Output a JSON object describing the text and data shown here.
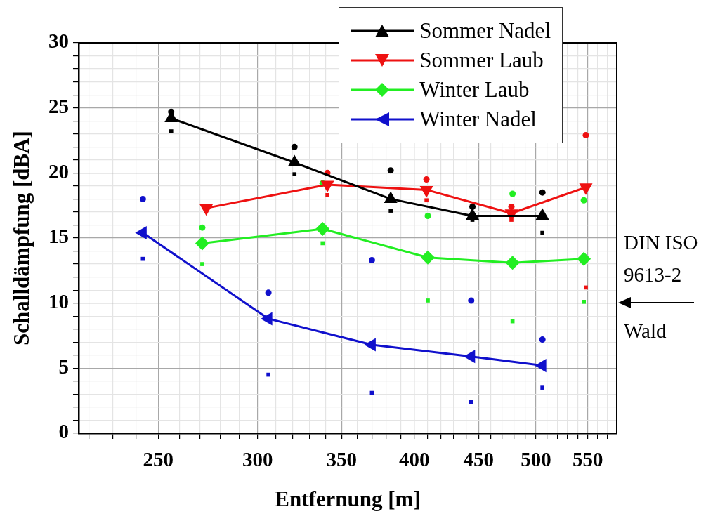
{
  "chart_data": {
    "type": "line",
    "xlabel": "Entfernung [m]",
    "ylabel": "Schalldämpfung [dBA]",
    "log": "x",
    "xlim": [
      216,
      580
    ],
    "ylim": [
      0,
      30
    ],
    "xticks": [
      {
        "value": 220,
        "label": null
      },
      {
        "value": 230,
        "label": null
      },
      {
        "value": 240,
        "label": null
      },
      250,
      {
        "value": 260,
        "label": null
      },
      {
        "value": 270,
        "label": null
      },
      {
        "value": 280,
        "label": null
      },
      {
        "value": 290,
        "label": null
      },
      300,
      {
        "value": 310,
        "label": null
      },
      {
        "value": 320,
        "label": null
      },
      {
        "value": 330,
        "label": null
      },
      {
        "value": 340,
        "label": null
      },
      350,
      {
        "value": 360,
        "label": null
      },
      {
        "value": 370,
        "label": null
      },
      {
        "value": 380,
        "label": null
      },
      {
        "value": 390,
        "label": null
      },
      400,
      {
        "value": 410,
        "label": null
      },
      {
        "value": 420,
        "label": null
      },
      {
        "value": 430,
        "label": null
      },
      {
        "value": 440,
        "label": null
      },
      450,
      {
        "value": 460,
        "label": null
      },
      {
        "value": 470,
        "label": null
      },
      {
        "value": 480,
        "label": null
      },
      {
        "value": 490,
        "label": null
      },
      500,
      {
        "value": 510,
        "label": null
      },
      {
        "value": 520,
        "label": null
      },
      {
        "value": 530,
        "label": null
      },
      {
        "value": 540,
        "label": null
      },
      550,
      {
        "value": 560,
        "label": null
      },
      {
        "value": 570,
        "label": null
      }
    ],
    "yticks": [
      0,
      {
        "value": 1,
        "label": null
      },
      {
        "value": 2,
        "label": null
      },
      {
        "value": 3,
        "label": null
      },
      {
        "value": 4,
        "label": null
      },
      5,
      {
        "value": 6,
        "label": null
      },
      {
        "value": 7,
        "label": null
      },
      {
        "value": 8,
        "label": null
      },
      {
        "value": 9,
        "label": null
      },
      10,
      {
        "value": 11,
        "label": null
      },
      {
        "value": 12,
        "label": null
      },
      {
        "value": 13,
        "label": null
      },
      {
        "value": 14,
        "label": null
      },
      15,
      {
        "value": 16,
        "label": null
      },
      {
        "value": 17,
        "label": null
      },
      {
        "value": 18,
        "label": null
      },
      {
        "value": 19,
        "label": null
      },
      20,
      {
        "value": 21,
        "label": null
      },
      {
        "value": 22,
        "label": null
      },
      {
        "value": 23,
        "label": null
      },
      {
        "value": 24,
        "label": null
      },
      25,
      {
        "value": 26,
        "label": null
      },
      {
        "value": 27,
        "label": null
      },
      {
        "value": 28,
        "label": null
      },
      {
        "value": 29,
        "label": null
      },
      30
    ],
    "grid": true,
    "legend": "top right",
    "line_style": "solid",
    "series": [
      {
        "name": "Sommer Nadel",
        "marker": "triangle",
        "color": "#000000",
        "x": [
          256,
          321,
          383,
          445,
          506
        ],
        "values": [
          24.2,
          20.8,
          18.0,
          16.7,
          16.7
        ]
      },
      {
        "name": "Sommer Laub",
        "marker": "triangle-down",
        "color": "#ee1111",
        "x": [
          273,
          341,
          409,
          478,
          548
        ],
        "values": [
          17.3,
          19.1,
          18.7,
          16.9,
          18.9
        ]
      },
      {
        "name": "Winter Laub",
        "marker": "diamond",
        "color": "#22ee22",
        "x": [
          271,
          338,
          410,
          479,
          546
        ],
        "values": [
          14.6,
          15.7,
          13.5,
          13.1,
          13.4
        ]
      },
      {
        "name": "Winter Nadel",
        "marker": "triangle-left",
        "color": "#1010cc",
        "x": [
          243,
          306,
          370,
          444,
          506
        ],
        "values": [
          15.4,
          8.8,
          6.8,
          5.9,
          5.2
        ]
      },
      {
        "type": "scatter",
        "marker": "circle",
        "color": "#000000",
        "x": [
          256,
          321,
          383,
          445,
          506
        ],
        "values": [
          24.7,
          22.0,
          20.2,
          17.4,
          18.5
        ]
      },
      {
        "type": "scatter",
        "marker": "square",
        "color": "#000000",
        "x": [
          256,
          321,
          383,
          445,
          506
        ],
        "values": [
          23.2,
          19.9,
          17.1,
          16.4,
          15.4
        ]
      },
      {
        "type": "scatter",
        "marker": "circle",
        "color": "#ee1111",
        "x": [
          341,
          409,
          478,
          548
        ],
        "values": [
          20.0,
          19.5,
          17.4,
          22.9
        ]
      },
      {
        "type": "scatter",
        "marker": "square",
        "color": "#ee1111",
        "x": [
          341,
          409,
          478,
          548
        ],
        "values": [
          18.3,
          17.9,
          16.4,
          11.2
        ]
      },
      {
        "type": "scatter",
        "marker": "circle",
        "color": "#22ee22",
        "x": [
          271,
          338,
          410,
          479,
          546
        ],
        "values": [
          15.8,
          19.2,
          16.7,
          18.4,
          17.9
        ]
      },
      {
        "type": "scatter",
        "marker": "square",
        "color": "#22ee22",
        "x": [
          271,
          338,
          410,
          479,
          546
        ],
        "values": [
          13.0,
          14.6,
          10.2,
          8.6,
          10.1
        ]
      },
      {
        "type": "scatter",
        "marker": "circle",
        "color": "#1010cc",
        "x": [
          243,
          306,
          370,
          444,
          506
        ],
        "values": [
          18.0,
          10.8,
          13.3,
          10.2,
          7.2
        ]
      },
      {
        "type": "scatter",
        "marker": "square",
        "color": "#1010cc",
        "x": [
          243,
          306,
          370,
          444,
          506
        ],
        "values": [
          13.4,
          4.5,
          3.1,
          2.4,
          3.5
        ]
      }
    ],
    "annotations": [
      "DIN ISO 9613-2",
      "Wald"
    ]
  }
}
